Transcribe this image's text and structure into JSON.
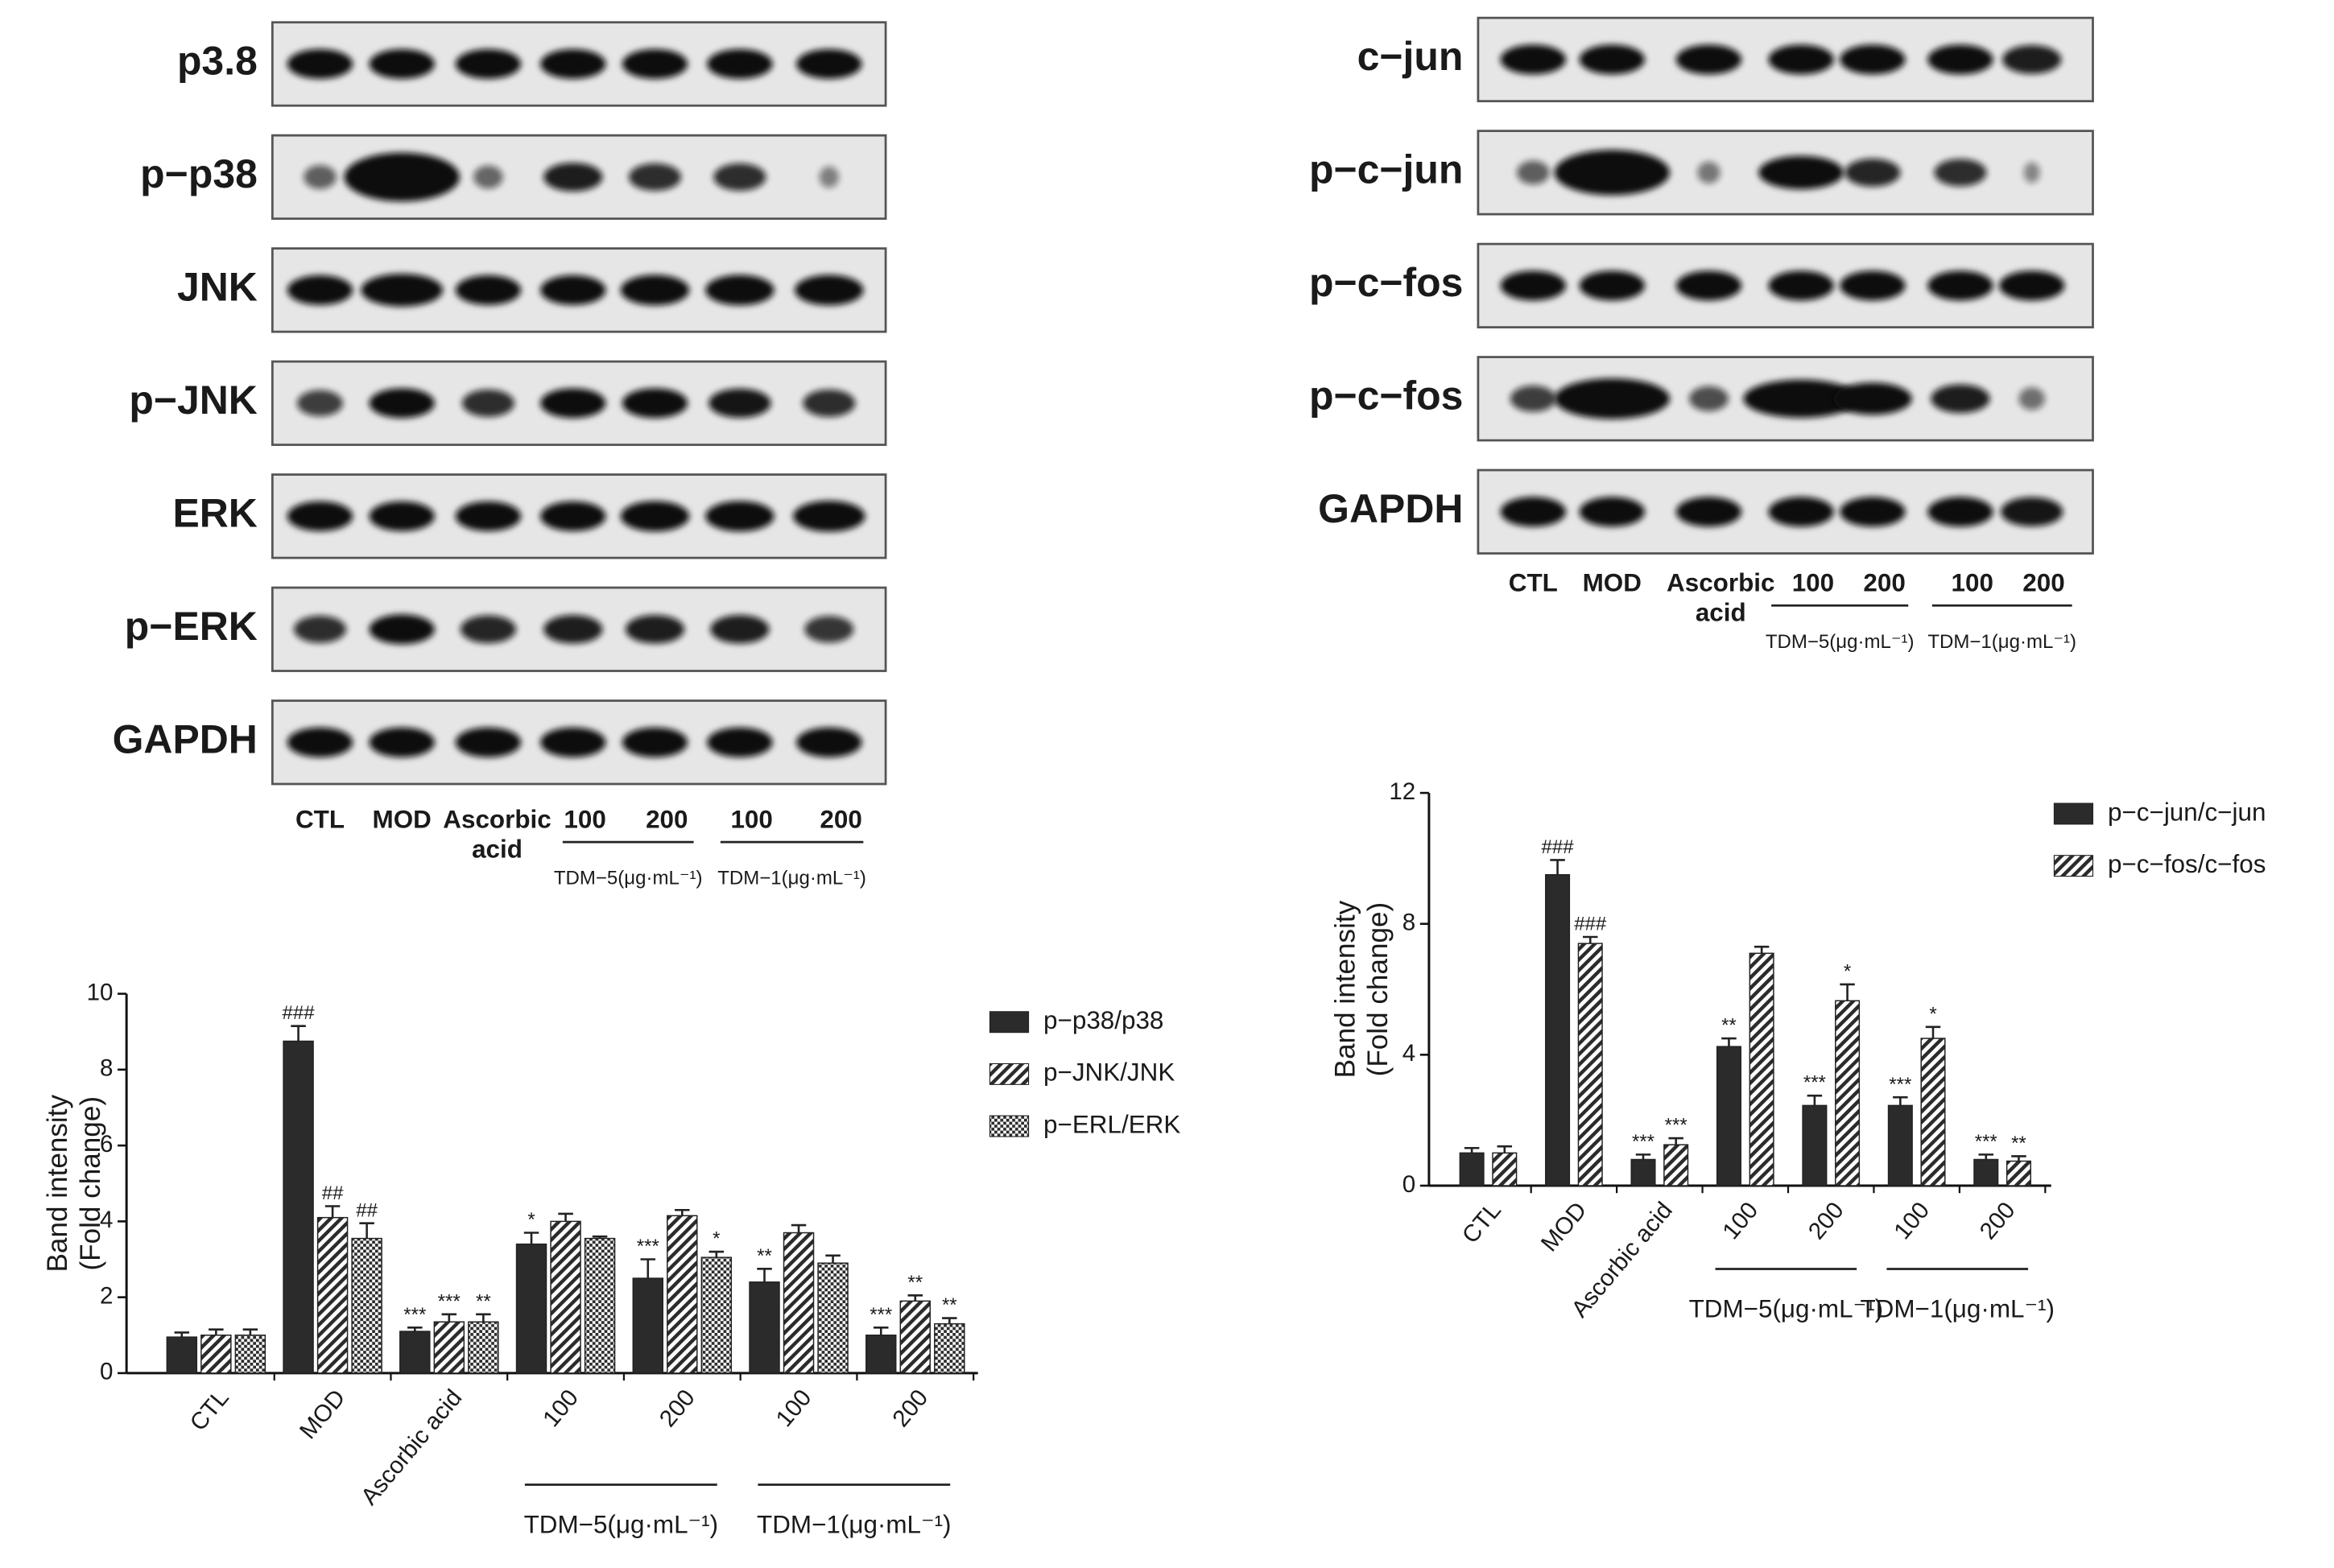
{
  "blots": [
    {
      "rows": [
        "p3.8",
        "p−p38",
        "JNK",
        "p−JNK",
        "ERK",
        "p−ERK",
        "GAPDH"
      ],
      "lanes": [
        "CTL",
        "MOD",
        [
          "Ascorbic",
          "acid"
        ],
        "100",
        "200",
        "100",
        "200"
      ],
      "groups": [
        "TDM−5(μg·mL⁻¹)",
        "TDM−1(μg·mL⁻¹)"
      ]
    },
    {
      "rows": [
        "c−jun",
        "p−c−jun",
        "p−c−fos",
        "p−c−fos",
        "GAPDH"
      ],
      "lanes": [
        "CTL",
        "MOD",
        [
          "Ascorbic",
          "acid"
        ],
        "100",
        "200",
        "100",
        "200"
      ],
      "groups": [
        "TDM−5(μg·mL⁻¹)",
        "TDM−1(μg·mL⁻¹)"
      ]
    }
  ],
  "chart_data": [
    {
      "type": "bar",
      "ylabel": [
        "Band intensity",
        "(Fold change)"
      ],
      "categories": [
        "CTL",
        "MOD",
        "Ascorbic acid",
        "100",
        "200",
        "100",
        "200"
      ],
      "groups": [
        "TDM−5(μg·mL⁻¹)",
        "TDM−1(μg·mL⁻¹)"
      ],
      "ylim": [
        0,
        10
      ],
      "yticks": [
        0,
        2,
        4,
        6,
        8,
        10
      ],
      "series": [
        {
          "name": "p−p38/p38",
          "color": "#2b2b2b",
          "pattern": "solid",
          "values": [
            0.95,
            8.75,
            1.1,
            3.4,
            2.5,
            2.4,
            1.0
          ],
          "errors": [
            0.12,
            0.4,
            0.1,
            0.3,
            0.5,
            0.35,
            0.2
          ],
          "annotations": [
            null,
            "###",
            "***",
            "*",
            "***",
            "**",
            "***"
          ]
        },
        {
          "name": "p−JNK/JNK",
          "color": "#2b2b2b",
          "pattern": "diagonal",
          "values": [
            1.0,
            4.1,
            1.35,
            4.0,
            4.15,
            3.7,
            1.9
          ],
          "errors": [
            0.15,
            0.3,
            0.2,
            0.2,
            0.15,
            0.2,
            0.15
          ],
          "annotations": [
            null,
            "##",
            "***",
            null,
            null,
            null,
            "**"
          ]
        },
        {
          "name": "p−ERL/ERK",
          "color": "#2b2b2b",
          "pattern": "crosshatch",
          "values": [
            1.0,
            3.55,
            1.35,
            3.55,
            3.05,
            2.9,
            1.3
          ],
          "errors": [
            0.15,
            0.4,
            0.2,
            0.05,
            0.15,
            0.2,
            0.15
          ],
          "annotations": [
            null,
            "##",
            "**",
            null,
            "*",
            null,
            "**"
          ]
        }
      ]
    },
    {
      "type": "bar",
      "ylabel": [
        "Band intensity",
        "(Fold change)"
      ],
      "categories": [
        "CTL",
        "MOD",
        "Ascorbic acid",
        "100",
        "200",
        "100",
        "200"
      ],
      "groups": [
        "TDM−5(μg·mL⁻¹)",
        "TDM−1(μg·mL⁻¹)"
      ],
      "ylim": [
        0,
        12
      ],
      "yticks": [
        0,
        4,
        8,
        12
      ],
      "series": [
        {
          "name": "p−c−jun/c−jun",
          "color": "#2b2b2b",
          "pattern": "solid",
          "values": [
            1.0,
            9.5,
            0.8,
            4.25,
            2.45,
            2.45,
            0.8
          ],
          "errors": [
            0.15,
            0.45,
            0.15,
            0.25,
            0.3,
            0.25,
            0.15
          ],
          "annotations": [
            null,
            "###",
            "***",
            "**",
            "***",
            "***",
            "***"
          ]
        },
        {
          "name": "p−c−fos/c−fos",
          "color": "#2b2b2b",
          "pattern": "diagonal",
          "values": [
            1.0,
            7.4,
            1.25,
            7.1,
            5.65,
            4.5,
            0.75
          ],
          "errors": [
            0.2,
            0.2,
            0.2,
            0.2,
            0.5,
            0.35,
            0.15
          ],
          "annotations": [
            null,
            "###",
            "***",
            null,
            "*",
            "*",
            "**"
          ]
        }
      ]
    }
  ]
}
